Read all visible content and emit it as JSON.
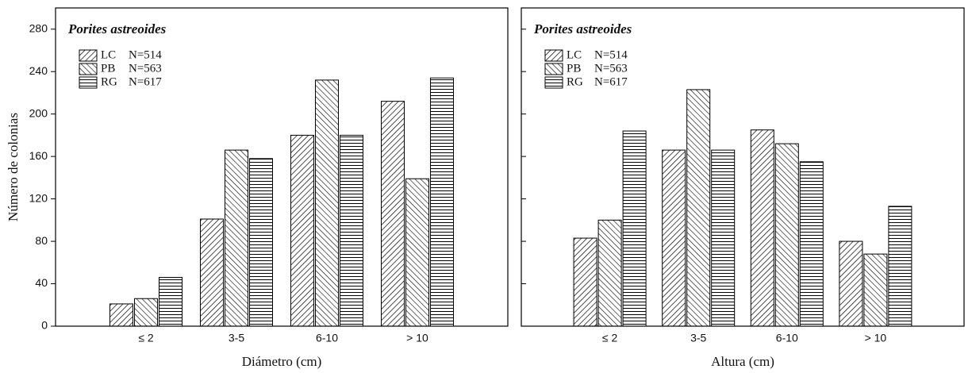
{
  "chart_data": [
    {
      "type": "bar",
      "title": "Porites astreoides",
      "xlabel": "Diámetro (cm)",
      "ylabel": "Número de colonias",
      "categories": [
        "≤ 2",
        "3-5",
        "6-10",
        "> 10"
      ],
      "series": [
        {
          "name": "LC",
          "n": "N=514",
          "color": "#000000",
          "pattern": "diagonal-right",
          "values": [
            21,
            101,
            180,
            212
          ]
        },
        {
          "name": "PB",
          "n": "N=563",
          "color": "#000000",
          "pattern": "diagonal-left",
          "values": [
            26,
            166,
            232,
            139
          ]
        },
        {
          "name": "RG",
          "n": "N=617",
          "color": "#000000",
          "pattern": "horizontal",
          "values": [
            46,
            158,
            180,
            234
          ]
        }
      ],
      "ylim": [
        0,
        300
      ],
      "yticks": [
        0,
        40,
        80,
        120,
        160,
        200,
        240,
        280
      ],
      "ytick_labels": true,
      "legend": "upper-left"
    },
    {
      "type": "bar",
      "title": "Porites astreoides",
      "xlabel": "Altura (cm)",
      "categories": [
        "≤ 2",
        "3-5",
        "6-10",
        "> 10"
      ],
      "series": [
        {
          "name": "LC",
          "n": "N=514",
          "color": "#000000",
          "pattern": "diagonal-right",
          "values": [
            83,
            166,
            185,
            80
          ]
        },
        {
          "name": "PB",
          "n": "N=563",
          "color": "#000000",
          "pattern": "diagonal-left",
          "values": [
            100,
            223,
            172,
            68
          ]
        },
        {
          "name": "RG",
          "n": "N=617",
          "color": "#000000",
          "pattern": "horizontal",
          "values": [
            184,
            166,
            155,
            113
          ]
        }
      ],
      "ylim": [
        0,
        300
      ],
      "yticks": [
        0,
        40,
        80,
        120,
        160,
        200,
        240,
        280
      ],
      "ytick_labels": false,
      "legend": "upper-left"
    }
  ]
}
